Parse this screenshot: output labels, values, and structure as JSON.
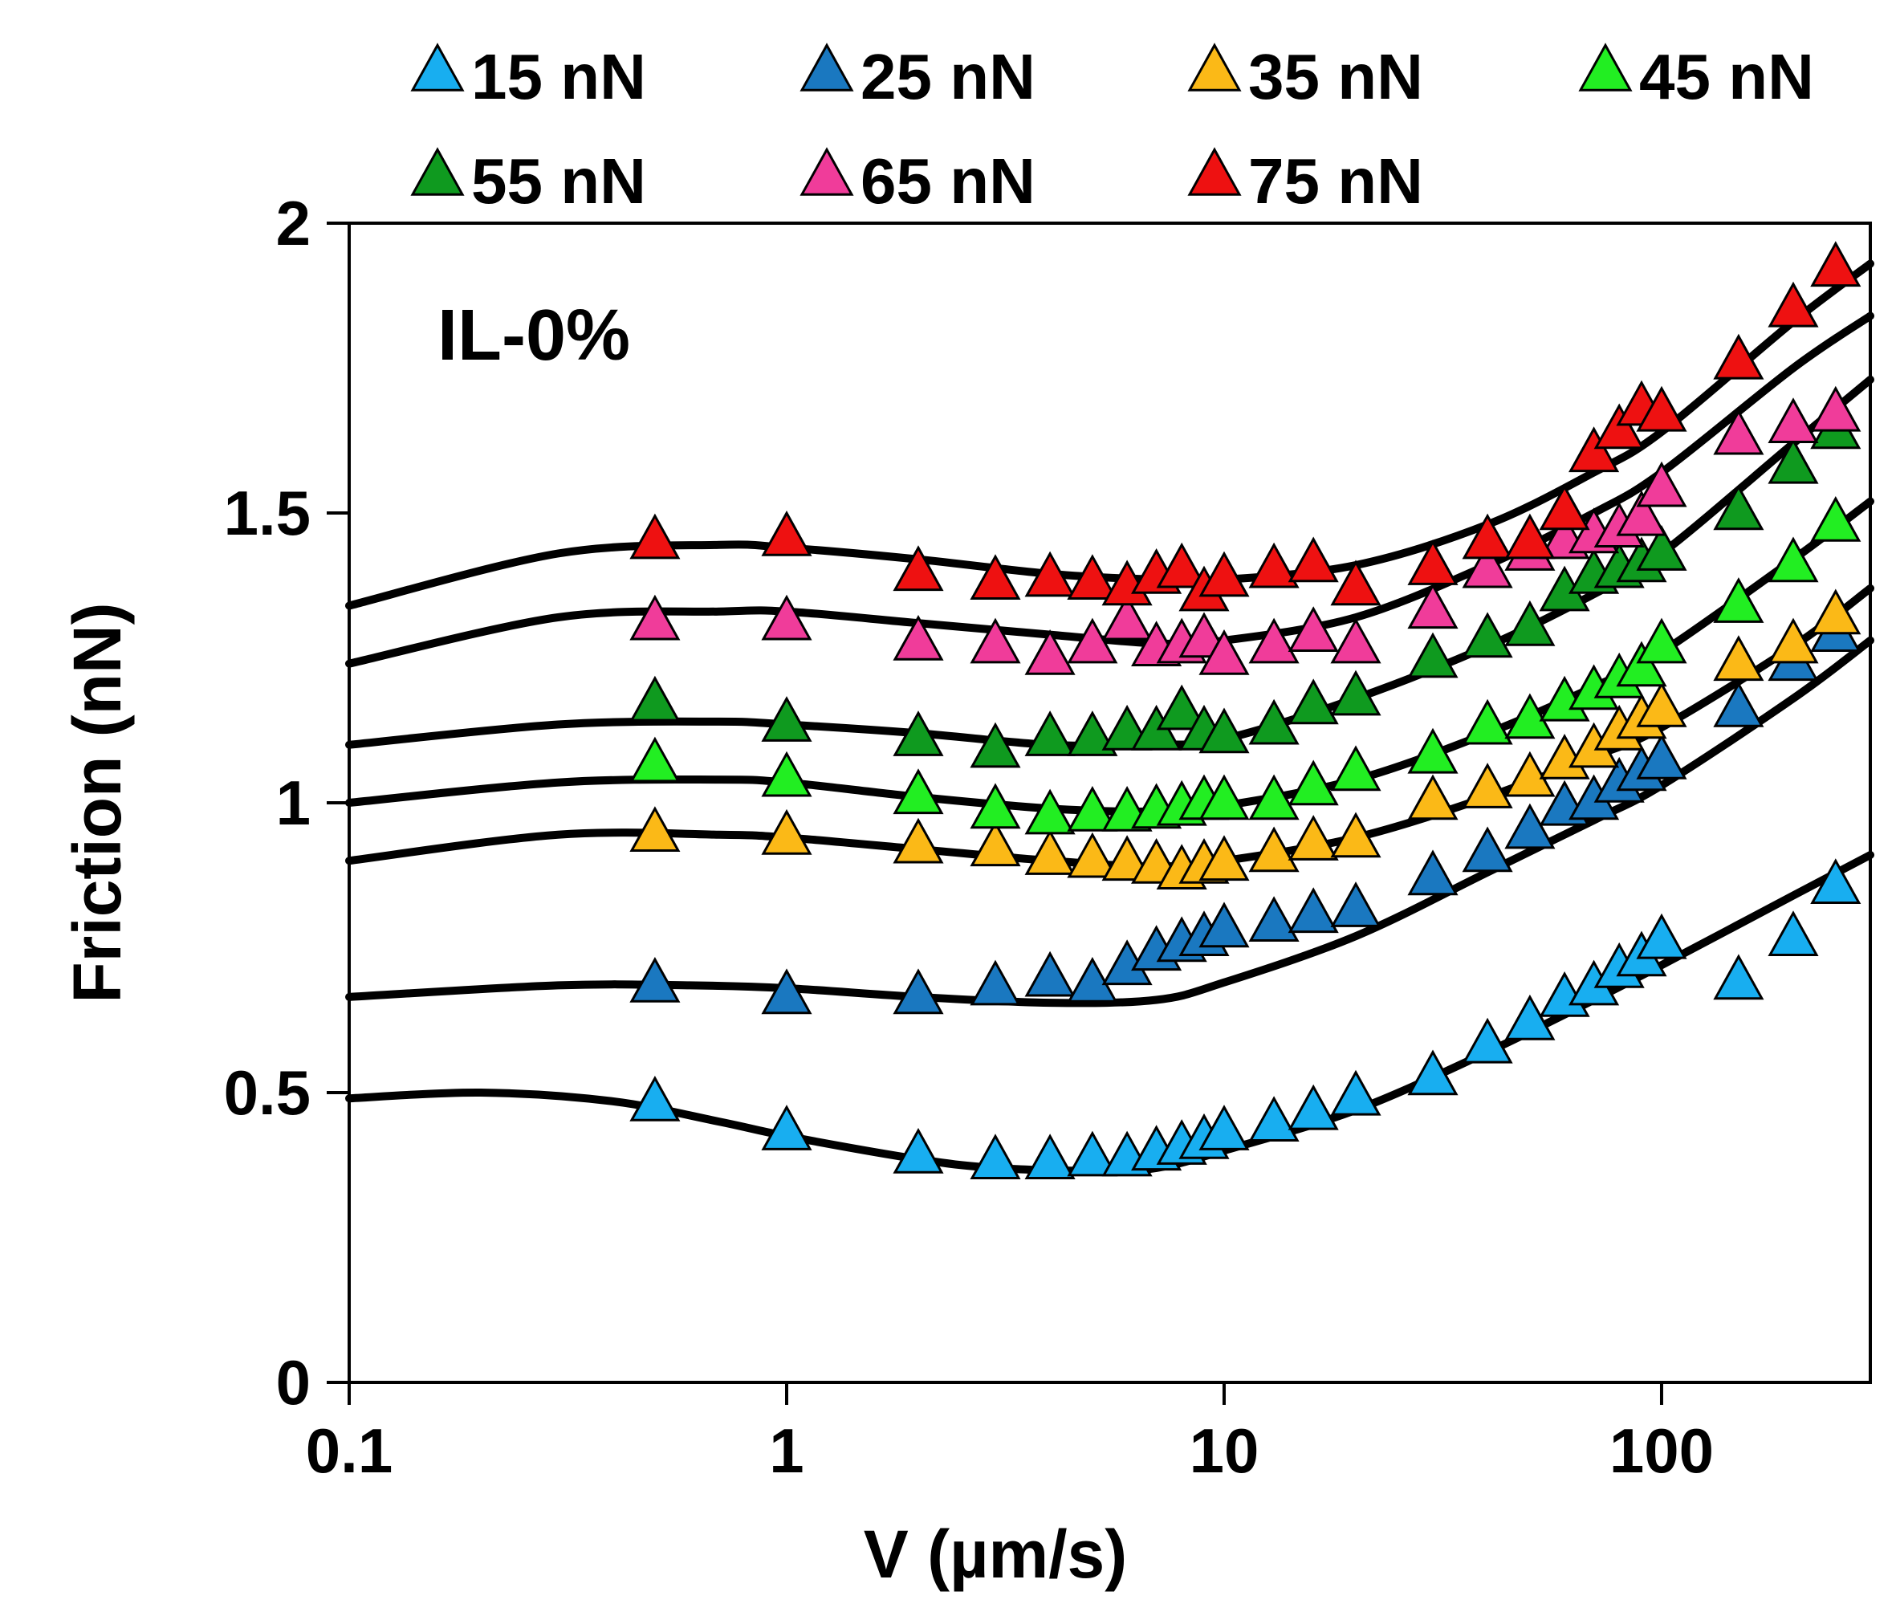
{
  "chart_data": {
    "type": "scatter",
    "annotation": "IL-0%",
    "xlabel": "V (µm/s)",
    "ylabel": "Friction (nN)",
    "xscale": "log",
    "xlim": [
      0.1,
      300
    ],
    "ylim": [
      0,
      2
    ],
    "xticks": [
      {
        "value": 0.1,
        "label": "0.1"
      },
      {
        "value": 1,
        "label": "1"
      },
      {
        "value": 10,
        "label": "10"
      },
      {
        "value": 100,
        "label": "100"
      }
    ],
    "yticks": [
      {
        "value": 0,
        "label": "0"
      },
      {
        "value": 0.5,
        "label": "0.5"
      },
      {
        "value": 1,
        "label": "1"
      },
      {
        "value": 1.5,
        "label": "1.5"
      },
      {
        "value": 2,
        "label": "2"
      }
    ],
    "legend_position": "top",
    "marker": "triangle",
    "x": [
      0.5,
      1,
      2,
      3,
      4,
      5,
      6,
      7,
      8,
      9,
      10,
      13,
      16,
      20,
      30,
      40,
      50,
      60,
      70,
      80,
      90,
      100,
      150,
      200,
      250
    ],
    "series": [
      {
        "name": "15 nN",
        "color": "#18aef0",
        "values": [
          0.48,
          0.43,
          0.39,
          0.38,
          0.38,
          0.385,
          0.385,
          0.395,
          0.405,
          0.415,
          0.43,
          0.445,
          0.465,
          0.49,
          0.525,
          0.58,
          0.62,
          0.66,
          0.68,
          0.71,
          0.73,
          0.76,
          0.69,
          0.765,
          0.855
        ],
        "fit": [
          [
            0.1,
            0.49
          ],
          [
            0.2,
            0.5
          ],
          [
            0.4,
            0.485
          ],
          [
            0.7,
            0.45
          ],
          [
            1,
            0.425
          ],
          [
            2,
            0.385
          ],
          [
            3,
            0.37
          ],
          [
            5,
            0.365
          ],
          [
            7,
            0.37
          ],
          [
            10,
            0.4
          ],
          [
            20,
            0.47
          ],
          [
            40,
            0.57
          ],
          [
            70,
            0.66
          ],
          [
            100,
            0.72
          ],
          [
            200,
            0.84
          ],
          [
            300,
            0.91
          ]
        ]
      },
      {
        "name": "25 nN",
        "color": "#1a78c0",
        "values": [
          0.685,
          0.665,
          0.665,
          0.68,
          0.695,
          0.685,
          0.715,
          0.74,
          0.755,
          0.765,
          0.78,
          0.79,
          0.805,
          0.815,
          0.87,
          0.91,
          0.95,
          0.99,
          1.0,
          1.03,
          1.05,
          1.07,
          1.16,
          1.24,
          1.29
        ],
        "fit": [
          [
            0.1,
            0.665
          ],
          [
            0.3,
            0.685
          ],
          [
            0.6,
            0.685
          ],
          [
            1,
            0.68
          ],
          [
            2,
            0.665
          ],
          [
            4,
            0.655
          ],
          [
            7,
            0.66
          ],
          [
            10,
            0.69
          ],
          [
            20,
            0.77
          ],
          [
            40,
            0.88
          ],
          [
            70,
            0.97
          ],
          [
            100,
            1.03
          ],
          [
            200,
            1.18
          ],
          [
            300,
            1.28
          ]
        ]
      },
      {
        "name": "35 nN",
        "color": "#fbb917",
        "values": [
          0.945,
          0.94,
          0.925,
          0.92,
          0.905,
          0.9,
          0.895,
          0.89,
          0.88,
          0.89,
          0.895,
          0.91,
          0.93,
          0.935,
          1.0,
          1.02,
          1.04,
          1.07,
          1.09,
          1.12,
          1.14,
          1.16,
          1.24,
          1.27,
          1.32
        ],
        "fit": [
          [
            0.1,
            0.9
          ],
          [
            0.3,
            0.945
          ],
          [
            0.7,
            0.945
          ],
          [
            1,
            0.94
          ],
          [
            2,
            0.92
          ],
          [
            4,
            0.9
          ],
          [
            7,
            0.89
          ],
          [
            10,
            0.9
          ],
          [
            20,
            0.94
          ],
          [
            40,
            1.01
          ],
          [
            70,
            1.08
          ],
          [
            100,
            1.13
          ],
          [
            200,
            1.27
          ],
          [
            300,
            1.37
          ]
        ]
      },
      {
        "name": "45 nN",
        "color": "#22ee22",
        "values": [
          1.065,
          1.04,
          1.01,
          0.985,
          0.975,
          0.98,
          0.98,
          0.985,
          0.99,
          1.0,
          1.0,
          1.0,
          1.025,
          1.05,
          1.08,
          1.13,
          1.14,
          1.17,
          1.19,
          1.21,
          1.23,
          1.27,
          1.34,
          1.41,
          1.48
        ],
        "fit": [
          [
            0.1,
            1.0
          ],
          [
            0.3,
            1.035
          ],
          [
            0.7,
            1.04
          ],
          [
            1,
            1.035
          ],
          [
            2,
            1.01
          ],
          [
            4,
            0.99
          ],
          [
            7,
            0.985
          ],
          [
            10,
            0.995
          ],
          [
            20,
            1.04
          ],
          [
            40,
            1.12
          ],
          [
            70,
            1.2
          ],
          [
            100,
            1.26
          ],
          [
            200,
            1.42
          ],
          [
            300,
            1.52
          ]
        ]
      },
      {
        "name": "55 nN",
        "color": "#0f9a1f",
        "values": [
          1.17,
          1.135,
          1.11,
          1.09,
          1.11,
          1.11,
          1.12,
          1.12,
          1.155,
          1.12,
          1.115,
          1.13,
          1.165,
          1.18,
          1.245,
          1.28,
          1.3,
          1.36,
          1.39,
          1.4,
          1.41,
          1.43,
          1.5,
          1.58,
          1.64
        ],
        "fit": [
          [
            0.1,
            1.1
          ],
          [
            0.3,
            1.135
          ],
          [
            0.7,
            1.14
          ],
          [
            1,
            1.135
          ],
          [
            2,
            1.12
          ],
          [
            4,
            1.1
          ],
          [
            7,
            1.1
          ],
          [
            10,
            1.11
          ],
          [
            20,
            1.18
          ],
          [
            40,
            1.27
          ],
          [
            70,
            1.36
          ],
          [
            100,
            1.43
          ],
          [
            200,
            1.62
          ],
          [
            300,
            1.73
          ]
        ]
      },
      {
        "name": "65 nN",
        "color": "#f03c9a",
        "values": [
          1.31,
          1.31,
          1.275,
          1.27,
          1.25,
          1.27,
          1.31,
          1.265,
          1.27,
          1.28,
          1.25,
          1.27,
          1.29,
          1.27,
          1.33,
          1.4,
          1.43,
          1.45,
          1.46,
          1.47,
          1.49,
          1.54,
          1.63,
          1.65,
          1.67
        ],
        "fit": [
          [
            0.1,
            1.24
          ],
          [
            0.3,
            1.32
          ],
          [
            0.7,
            1.33
          ],
          [
            1,
            1.33
          ],
          [
            2,
            1.31
          ],
          [
            4,
            1.29
          ],
          [
            7,
            1.275
          ],
          [
            10,
            1.28
          ],
          [
            20,
            1.32
          ],
          [
            40,
            1.41
          ],
          [
            70,
            1.5
          ],
          [
            100,
            1.57
          ],
          [
            200,
            1.75
          ],
          [
            300,
            1.84
          ]
        ]
      },
      {
        "name": "75 nN",
        "color": "#ee1111",
        "values": [
          1.45,
          1.455,
          1.395,
          1.38,
          1.385,
          1.38,
          1.37,
          1.39,
          1.4,
          1.36,
          1.385,
          1.4,
          1.41,
          1.37,
          1.405,
          1.45,
          1.45,
          1.5,
          1.6,
          1.64,
          1.68,
          1.67,
          1.76,
          1.85,
          1.92
        ],
        "fit": [
          [
            0.1,
            1.34
          ],
          [
            0.3,
            1.43
          ],
          [
            0.7,
            1.445
          ],
          [
            1,
            1.44
          ],
          [
            2,
            1.42
          ],
          [
            4,
            1.395
          ],
          [
            7,
            1.385
          ],
          [
            10,
            1.385
          ],
          [
            20,
            1.41
          ],
          [
            40,
            1.48
          ],
          [
            70,
            1.57
          ],
          [
            100,
            1.64
          ],
          [
            200,
            1.83
          ],
          [
            300,
            1.93
          ]
        ]
      }
    ]
  }
}
